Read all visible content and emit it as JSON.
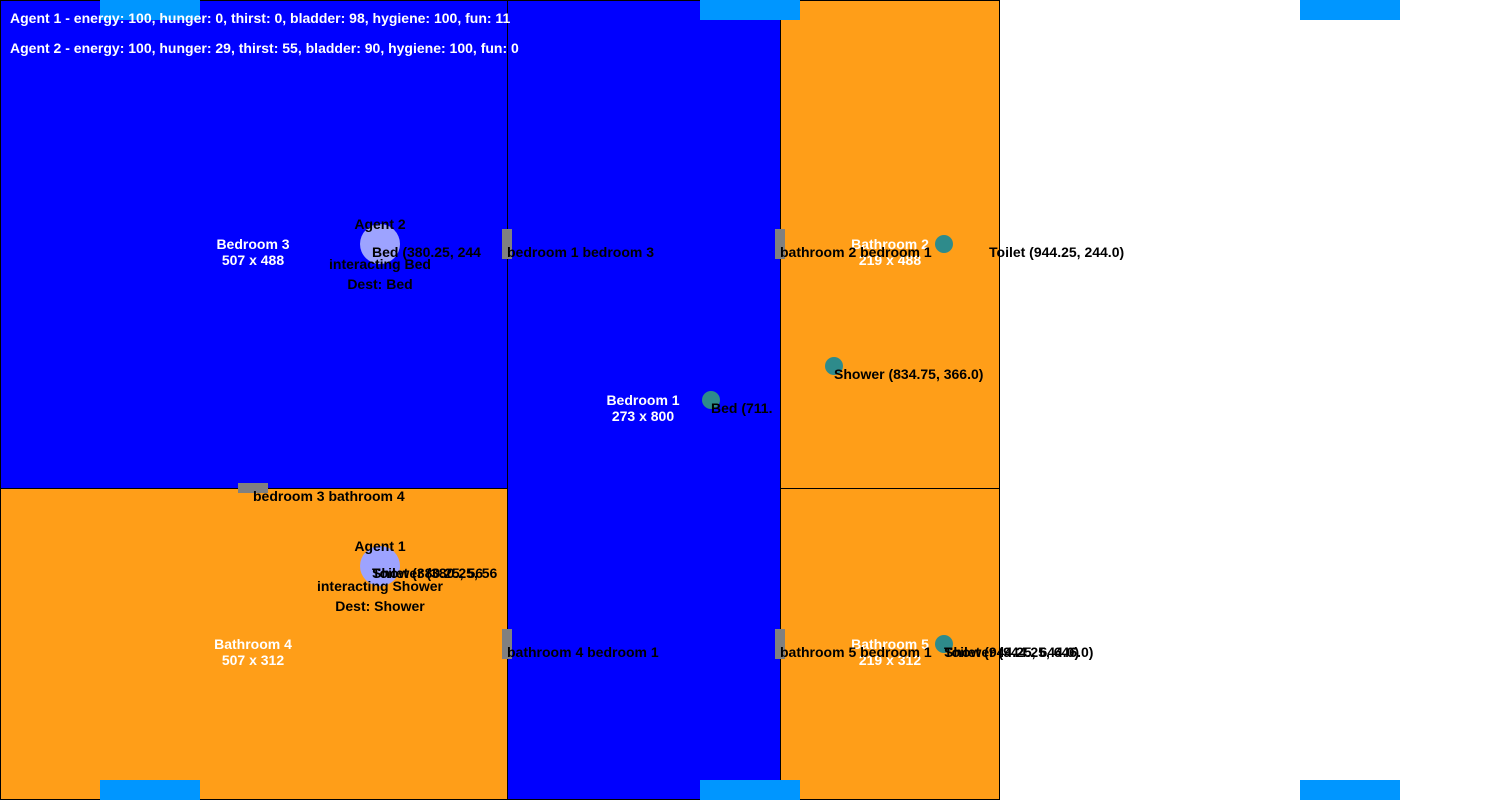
{
  "hud": {
    "agent1_status": "Agent 1 - energy: 100, hunger: 0, thirst: 0, bladder: 98, hygiene: 100, fun: 11",
    "agent2_status": "Agent 2 - energy: 100, hunger: 29, thirst: 55, bladder: 90, hygiene: 100, fun: 0"
  },
  "colors": {
    "bedroom": "#0000ff",
    "bathroom": "#ff9e18",
    "door": "#808080",
    "window": "#0096ff",
    "object": "#2e8b8b",
    "agent": "#9da3ff"
  },
  "rooms": [
    {
      "id": "bedroom-3",
      "type": "bedroom",
      "name": "Bedroom 3",
      "size": "507 x 488"
    },
    {
      "id": "bedroom-1",
      "type": "bedroom",
      "name": "Bedroom 1",
      "size": "273 x 800"
    },
    {
      "id": "bathroom-2",
      "type": "bathroom",
      "name": "Bathroom 2",
      "size": "219 x 488"
    },
    {
      "id": "bathroom-4",
      "type": "bathroom",
      "name": "Bathroom 4",
      "size": "507 x 312"
    },
    {
      "id": "bathroom-5",
      "type": "bathroom",
      "name": "Bathroom 5",
      "size": "219 x 312"
    }
  ],
  "doors": [
    {
      "id": "bedroom-1-bedroom-3",
      "label": "bedroom 1 bedroom 3"
    },
    {
      "id": "bathroom-2-bedroom-1",
      "label": "bathroom 2 bedroom 1"
    },
    {
      "id": "bedroom-3-bathroom-4",
      "label": "bedroom 3 bathroom 4"
    },
    {
      "id": "bathroom-4-bedroom-1",
      "label": "bathroom 4 bedroom 1"
    },
    {
      "id": "bathroom-5-bedroom-1",
      "label": "bathroom 5 bedroom 1"
    }
  ],
  "objects": [
    {
      "id": "toilet-bathroom-2",
      "label": "Toilet (944.25, 244.0)"
    },
    {
      "id": "shower-bathroom-2",
      "label": "Shower (834.75, 366.0)"
    },
    {
      "id": "bed-bedroom-1",
      "label": "Bed (711."
    },
    {
      "id": "bed-bedroom-3",
      "label": "Bed (380.25, 244"
    },
    {
      "id": "shower-bathroom-4",
      "label": "Shower (380.25, 56"
    },
    {
      "id": "toilet-bathroom-4",
      "label": "Toilet (380.25, 56"
    },
    {
      "id": "toilet-bathroom-5",
      "label": "Toilet (944.25, 644.0)"
    },
    {
      "id": "shower-bathroom-5",
      "label": "Shower (944.25, 646.0)"
    }
  ],
  "agents": [
    {
      "id": "agent-2",
      "name": "Agent 2",
      "action": "interacting Bed",
      "dest": "Dest: Bed"
    },
    {
      "id": "agent-1",
      "name": "Agent 1",
      "action": "interacting Shower",
      "dest": "Dest: Shower"
    }
  ]
}
